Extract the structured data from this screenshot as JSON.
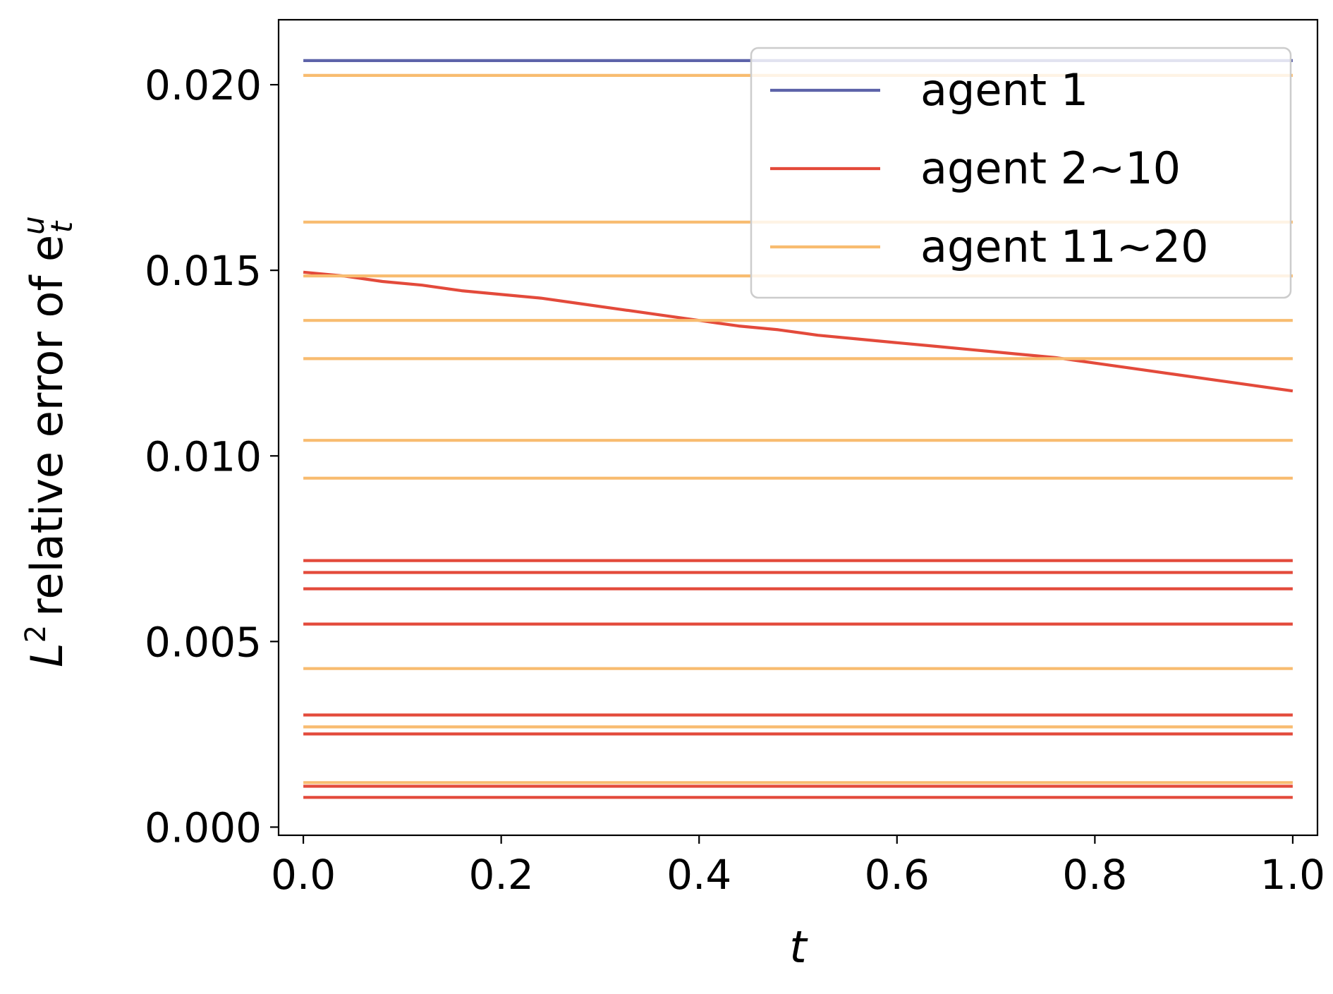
{
  "chart_data": {
    "type": "line",
    "xlabel": "t",
    "ylabel": {
      "main": "relative error of e",
      "prefix": "L",
      "prefix_sup": "2",
      "sup": "u",
      "sub": "t"
    },
    "xlim": [
      -0.025,
      1.025
    ],
    "ylim": [
      -0.00022,
      0.02175
    ],
    "xticks": [
      0.0,
      0.2,
      0.4,
      0.6,
      0.8,
      1.0
    ],
    "xtick_labels": [
      "0.0",
      "0.2",
      "0.4",
      "0.6",
      "0.8",
      "1.0"
    ],
    "yticks": [
      0.0,
      0.005,
      0.01,
      0.015,
      0.02
    ],
    "ytick_labels": [
      "0.000",
      "0.005",
      "0.010",
      "0.015",
      "0.020"
    ],
    "grid": false,
    "legend_position": "top-right",
    "legend": [
      {
        "label": "agent 1",
        "color": "#5d63a9"
      },
      {
        "label": "agent 2~10",
        "color": "#e34a3b"
      },
      {
        "label": "agent 11~20",
        "color": "#f8bc70"
      }
    ],
    "series": [
      {
        "group": "agent 1",
        "color": "#5d63a9",
        "x": [
          0,
          1
        ],
        "y": [
          0.02065,
          0.02065
        ]
      },
      {
        "group": "agent 2~10",
        "color": "#e34a3b",
        "x": [
          0,
          0.04,
          0.08,
          0.12,
          0.16,
          0.2,
          0.24,
          0.28,
          0.32,
          0.36,
          0.4,
          0.44,
          0.48,
          0.52,
          0.56,
          0.6,
          0.64,
          0.68,
          0.72,
          0.76,
          0.8,
          0.84,
          0.88,
          0.92,
          0.96,
          1.0
        ],
        "y": [
          0.01495,
          0.01485,
          0.0147,
          0.0146,
          0.01445,
          0.01435,
          0.01425,
          0.0141,
          0.01395,
          0.0138,
          0.01365,
          0.0135,
          0.0134,
          0.01325,
          0.01315,
          0.01305,
          0.01295,
          0.01285,
          0.01275,
          0.01265,
          0.0125,
          0.01235,
          0.0122,
          0.01205,
          0.0119,
          0.01175
        ]
      },
      {
        "group": "agent 2~10",
        "color": "#e34a3b",
        "x": [
          0,
          1
        ],
        "y": [
          0.00718,
          0.00718
        ]
      },
      {
        "group": "agent 2~10",
        "color": "#e34a3b",
        "x": [
          0,
          1
        ],
        "y": [
          0.00686,
          0.00686
        ]
      },
      {
        "group": "agent 2~10",
        "color": "#e34a3b",
        "x": [
          0,
          1
        ],
        "y": [
          0.00642,
          0.00642
        ]
      },
      {
        "group": "agent 2~10",
        "color": "#e34a3b",
        "x": [
          0,
          1
        ],
        "y": [
          0.00547,
          0.00547
        ]
      },
      {
        "group": "agent 2~10",
        "color": "#e34a3b",
        "x": [
          0,
          1
        ],
        "y": [
          0.00302,
          0.00302
        ]
      },
      {
        "group": "agent 2~10",
        "color": "#e34a3b",
        "x": [
          0,
          1
        ],
        "y": [
          0.00251,
          0.00251
        ]
      },
      {
        "group": "agent 2~10",
        "color": "#e34a3b",
        "x": [
          0,
          1
        ],
        "y": [
          0.0011,
          0.0011
        ]
      },
      {
        "group": "agent 2~10",
        "color": "#e34a3b",
        "x": [
          0,
          1
        ],
        "y": [
          0.0008,
          0.0008
        ]
      },
      {
        "group": "agent 11~20",
        "color": "#f8bc70",
        "x": [
          0,
          1
        ],
        "y": [
          0.02025,
          0.02025
        ]
      },
      {
        "group": "agent 11~20",
        "color": "#f8bc70",
        "x": [
          0,
          1
        ],
        "y": [
          0.0163,
          0.0163
        ]
      },
      {
        "group": "agent 11~20",
        "color": "#f8bc70",
        "x": [
          0,
          1
        ],
        "y": [
          0.01485,
          0.01485
        ]
      },
      {
        "group": "agent 11~20",
        "color": "#f8bc70",
        "x": [
          0,
          1
        ],
        "y": [
          0.01365,
          0.01365
        ]
      },
      {
        "group": "agent 11~20",
        "color": "#f8bc70",
        "x": [
          0,
          1
        ],
        "y": [
          0.01262,
          0.01262
        ]
      },
      {
        "group": "agent 11~20",
        "color": "#f8bc70",
        "x": [
          0,
          1
        ],
        "y": [
          0.01042,
          0.01042
        ]
      },
      {
        "group": "agent 11~20",
        "color": "#f8bc70",
        "x": [
          0,
          1
        ],
        "y": [
          0.0094,
          0.0094
        ]
      },
      {
        "group": "agent 11~20",
        "color": "#f8bc70",
        "x": [
          0,
          1
        ],
        "y": [
          0.00427,
          0.00427
        ]
      },
      {
        "group": "agent 11~20",
        "color": "#f8bc70",
        "x": [
          0,
          1
        ],
        "y": [
          0.0027,
          0.0027
        ]
      },
      {
        "group": "agent 11~20",
        "color": "#f8bc70",
        "x": [
          0,
          1
        ],
        "y": [
          0.0012,
          0.0012
        ]
      }
    ]
  }
}
